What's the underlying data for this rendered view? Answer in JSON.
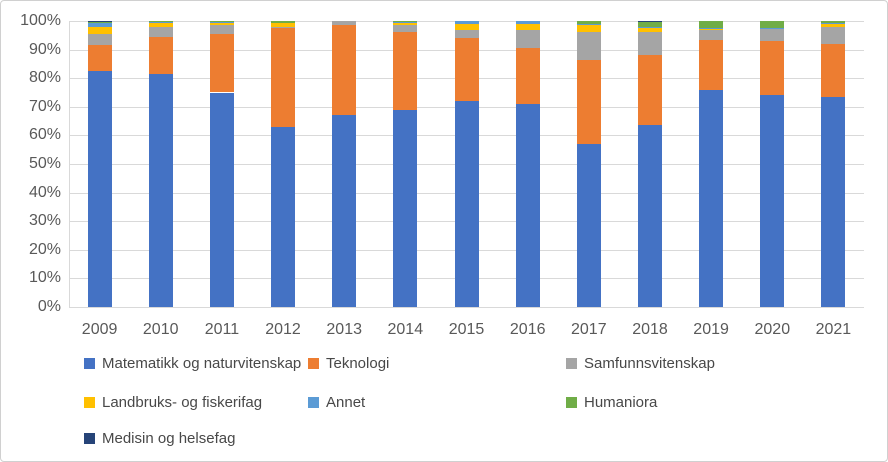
{
  "chart_data": {
    "type": "bar",
    "stacked": true,
    "stacked_100_percent": true,
    "title": "",
    "xlabel": "",
    "ylabel": "",
    "ylim": [
      0,
      100
    ],
    "grid": true,
    "legend_position": "bottom",
    "y_ticks": [
      "0%",
      "10%",
      "20%",
      "30%",
      "40%",
      "50%",
      "60%",
      "70%",
      "80%",
      "90%",
      "100%"
    ],
    "categories": [
      "2009",
      "2010",
      "2011",
      "2012",
      "2013",
      "2014",
      "2015",
      "2016",
      "2017",
      "2018",
      "2019",
      "2020",
      "2021"
    ],
    "series": [
      {
        "name": "Matematikk og naturvitenskap",
        "color": "#4472C4",
        "values": [
          82.5,
          81.5,
          75,
          63,
          67,
          69,
          72,
          71,
          57,
          63.5,
          76,
          74,
          73.5
        ]
      },
      {
        "name": "Teknologi",
        "color": "#ED7D31",
        "values": [
          9,
          13,
          20.5,
          34.5,
          31.5,
          27,
          22,
          19.5,
          29.5,
          24.5,
          17.5,
          19,
          18.5
        ]
      },
      {
        "name": "Samfunnsvitenskap",
        "color": "#A5A5A5",
        "values": [
          4,
          3.5,
          3,
          0.5,
          1.5,
          2.5,
          3,
          6.5,
          9.5,
          8,
          3.5,
          4.5,
          6
        ]
      },
      {
        "name": "Landbruks- og fiskerifag",
        "color": "#FFC000",
        "values": [
          2.5,
          1.3,
          0.8,
          1.3,
          0,
          1.2,
          2,
          2,
          2.5,
          1.5,
          0.4,
          0,
          1
        ]
      },
      {
        "name": "Annet",
        "color": "#5B9BD5",
        "values": [
          1.4,
          0.2,
          0.2,
          0,
          0,
          0.1,
          1,
          1,
          0.5,
          0.3,
          0.1,
          0.2,
          0.2
        ]
      },
      {
        "name": "Humaniora",
        "color": "#70AD47",
        "values": [
          0.4,
          0.5,
          0.5,
          0.7,
          0,
          0.2,
          0,
          0,
          1,
          2,
          2.5,
          2.3,
          0.8
        ]
      },
      {
        "name": "Medisin og helsefag",
        "color": "#264478",
        "values": [
          0.2,
          0,
          0,
          0,
          0,
          0,
          0,
          0,
          0,
          0.2,
          0,
          0,
          0
        ]
      }
    ]
  },
  "style": {
    "grid_color": "#d9d9d9",
    "axis_text_color": "#595959",
    "legend_text_color": "#484848",
    "border_color": "#d0d0d0",
    "background": "#ffffff"
  }
}
